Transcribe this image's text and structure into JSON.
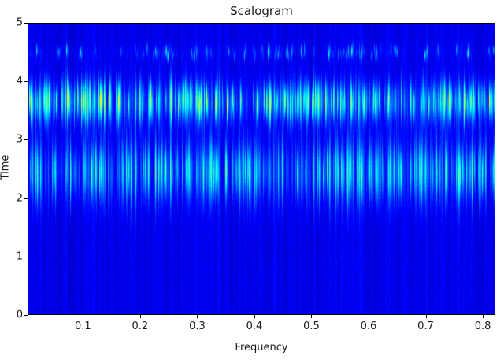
{
  "chart_data": {
    "type": "heatmap",
    "title": "Scalogram",
    "xlabel": "Frequency",
    "ylabel": "Time",
    "xlim": [
      0.003,
      0.822
    ],
    "ylim": [
      0,
      5
    ],
    "xticks": [
      {
        "v": 0.1,
        "label": "0.1"
      },
      {
        "v": 0.2,
        "label": "0.2"
      },
      {
        "v": 0.3,
        "label": "0.3"
      },
      {
        "v": 0.4,
        "label": "0.4"
      },
      {
        "v": 0.5,
        "label": "0.5"
      },
      {
        "v": 0.6,
        "label": "0.6"
      },
      {
        "v": 0.7,
        "label": "0.7"
      },
      {
        "v": 0.8,
        "label": "0.8"
      }
    ],
    "yticks": [
      {
        "v": 0,
        "label": "0"
      },
      {
        "v": 1,
        "label": "1"
      },
      {
        "v": 2,
        "label": "2"
      },
      {
        "v": 3,
        "label": "3"
      },
      {
        "v": 4,
        "label": "4"
      },
      {
        "v": 5,
        "label": "5"
      }
    ],
    "colormap": "jet",
    "background_level": 0.07,
    "background_streak_variation": 0.07,
    "bands": [
      {
        "time_center": 3.65,
        "time_width": 0.3,
        "peak_intensity": 0.52,
        "density": 0.85
      },
      {
        "time_center": 2.45,
        "time_width": 0.45,
        "peak_intensity": 0.38,
        "density": 0.8
      },
      {
        "time_center": 4.5,
        "time_width": 0.09,
        "peak_intensity": 0.3,
        "density": 0.22
      }
    ],
    "render": {
      "seed": 1337
    }
  }
}
